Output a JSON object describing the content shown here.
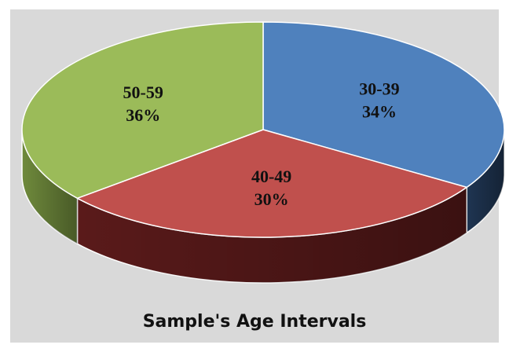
{
  "chart_data": {
    "type": "pie",
    "title": "Sample's Age Intervals",
    "categories": [
      "30-39",
      "40-49",
      "50-59"
    ],
    "values": [
      34,
      30,
      36
    ],
    "value_labels": [
      "34%",
      "30%",
      "36%"
    ],
    "unit": "%",
    "colors": [
      "#4f81bd",
      "#c0504d",
      "#9bbb59"
    ],
    "side_colors": [
      "#1f3552",
      "#5a1a1a",
      "#6f8a3c"
    ],
    "style": "3d",
    "legend": "none",
    "background": "#d9d9d9"
  }
}
